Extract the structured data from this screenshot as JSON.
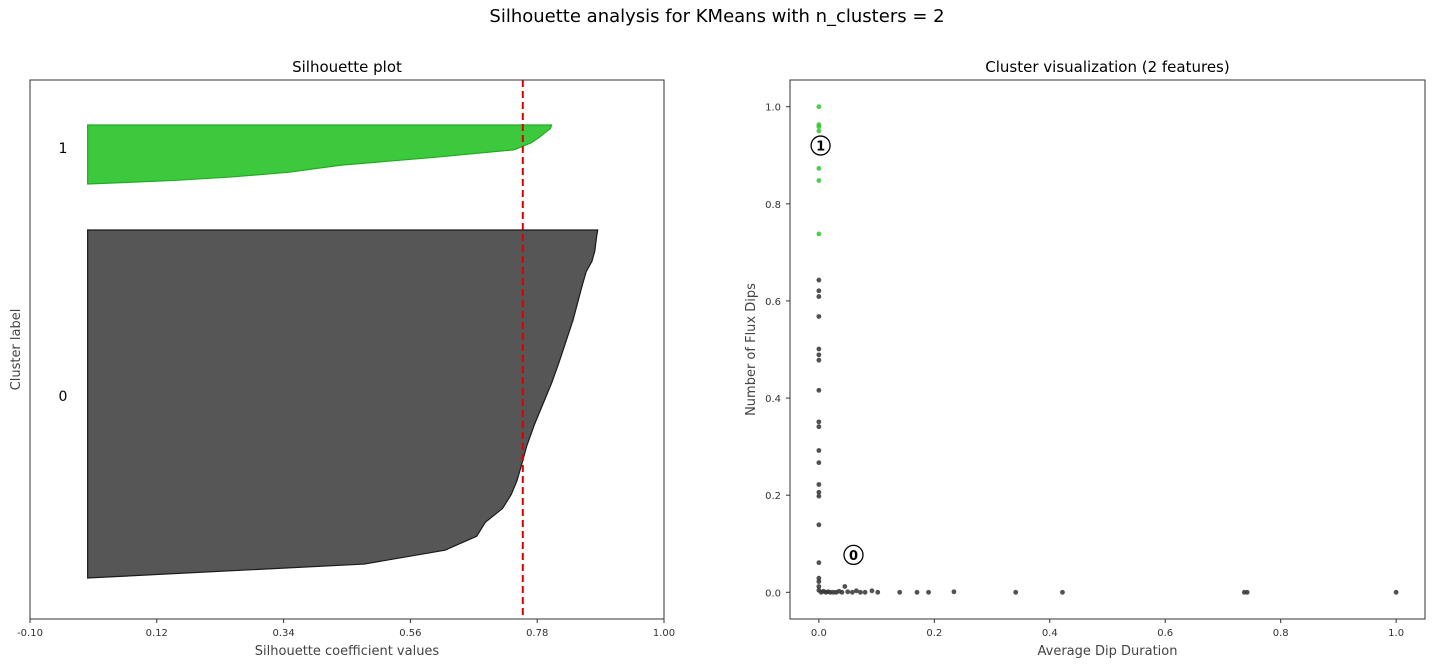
{
  "suptitle": "Silhouette analysis for KMeans with n_clusters = 2",
  "chart_data": [
    {
      "type": "area",
      "title": "Silhouette plot",
      "xlabel": "Silhouette coefficient values",
      "ylabel": "Cluster label",
      "xlim": [
        -0.1,
        1.0
      ],
      "xticks": [
        "-0.10",
        "0.12",
        "0.34",
        "0.56",
        "0.78",
        "1.00"
      ],
      "yticks": false,
      "average_silhouette": 0.755,
      "mean_line_color": "#dd0000",
      "clusters": [
        {
          "label": "0",
          "color": "#4d4d4d",
          "edge": "#1a1a1a",
          "profile": [
            [
              0.0,
              0.885
            ],
            [
              0.02,
              0.883
            ],
            [
              0.06,
              0.88
            ],
            [
              0.09,
              0.875
            ],
            [
              0.12,
              0.865
            ],
            [
              0.16,
              0.858
            ],
            [
              0.21,
              0.85
            ],
            [
              0.26,
              0.842
            ],
            [
              0.32,
              0.83
            ],
            [
              0.38,
              0.818
            ],
            [
              0.44,
              0.805
            ],
            [
              0.5,
              0.79
            ],
            [
              0.56,
              0.775
            ],
            [
              0.62,
              0.762
            ],
            [
              0.68,
              0.752
            ],
            [
              0.72,
              0.745
            ],
            [
              0.76,
              0.735
            ],
            [
              0.8,
              0.72
            ],
            [
              0.84,
              0.69
            ],
            [
              0.88,
              0.675
            ],
            [
              0.92,
              0.62
            ],
            [
              0.96,
              0.48
            ],
            [
              1.0,
              0.0
            ]
          ]
        },
        {
          "label": "1",
          "color": "#33c633",
          "edge": "#22aa22",
          "profile": [
            [
              0.0,
              0.805
            ],
            [
              0.06,
              0.803
            ],
            [
              0.12,
              0.795
            ],
            [
              0.2,
              0.785
            ],
            [
              0.3,
              0.77
            ],
            [
              0.42,
              0.74
            ],
            [
              0.55,
              0.6
            ],
            [
              0.68,
              0.44
            ],
            [
              0.8,
              0.35
            ],
            [
              0.88,
              0.25
            ],
            [
              0.94,
              0.15
            ],
            [
              1.0,
              0.0
            ]
          ]
        }
      ]
    },
    {
      "type": "scatter",
      "title": "Cluster visualization (2 features)",
      "xlabel": "Average Dip Duration",
      "ylabel": "Number of Flux Dips",
      "xlim": [
        -0.05,
        1.05
      ],
      "ylim": [
        -0.055,
        1.055
      ],
      "xticks": [
        "0.0",
        "0.2",
        "0.4",
        "0.6",
        "0.8",
        "1.0"
      ],
      "yticks": [
        "0.0",
        "0.2",
        "0.4",
        "0.6",
        "0.8",
        "1.0"
      ],
      "centers": [
        {
          "label": "0",
          "x": 0.06,
          "y": 0.077
        },
        {
          "label": "1",
          "x": 0.003,
          "y": 0.92
        }
      ],
      "series": [
        {
          "cluster": "0",
          "color": "#333333",
          "points": [
            [
              0.0,
              0.643
            ],
            [
              0.0,
              0.621
            ],
            [
              0.0,
              0.609
            ],
            [
              0.0,
              0.568
            ],
            [
              0.0,
              0.501
            ],
            [
              0.0,
              0.489
            ],
            [
              0.0,
              0.478
            ],
            [
              0.0,
              0.416
            ],
            [
              0.0,
              0.351
            ],
            [
              0.0,
              0.341
            ],
            [
              0.0,
              0.292
            ],
            [
              0.0,
              0.267
            ],
            [
              0.0,
              0.222
            ],
            [
              0.0,
              0.206
            ],
            [
              0.0,
              0.198
            ],
            [
              0.0,
              0.139
            ],
            [
              0.0,
              0.061
            ],
            [
              0.0,
              0.029
            ],
            [
              0.0,
              0.022
            ],
            [
              0.0,
              0.012
            ],
            [
              0.0,
              0.004
            ],
            [
              0.004,
              0.0
            ],
            [
              0.008,
              0.002
            ],
            [
              0.012,
              0.0
            ],
            [
              0.016,
              0.001
            ],
            [
              0.02,
              0.0
            ],
            [
              0.025,
              0.0
            ],
            [
              0.03,
              0.0
            ],
            [
              0.035,
              0.002
            ],
            [
              0.04,
              0.0
            ],
            [
              0.045,
              0.012
            ],
            [
              0.05,
              0.001
            ],
            [
              0.058,
              0.0
            ],
            [
              0.065,
              0.003
            ],
            [
              0.072,
              0.0
            ],
            [
              0.08,
              0.0
            ],
            [
              0.092,
              0.003
            ],
            [
              0.102,
              0.0
            ],
            [
              0.14,
              0.0
            ],
            [
              0.17,
              0.0
            ],
            [
              0.19,
              0.0
            ],
            [
              0.234,
              0.001
            ],
            [
              0.341,
              0.0
            ],
            [
              0.422,
              0.0
            ],
            [
              0.737,
              0.0
            ],
            [
              0.742,
              0.0
            ],
            [
              1.0,
              0.0
            ]
          ]
        },
        {
          "cluster": "1",
          "color": "#33c633",
          "points": [
            [
              0.0,
              1.0
            ],
            [
              0.0,
              0.963
            ],
            [
              0.0,
              0.959
            ],
            [
              0.0,
              0.95
            ],
            [
              0.0,
              0.873
            ],
            [
              0.0,
              0.848
            ],
            [
              0.0,
              0.738
            ]
          ]
        }
      ]
    }
  ]
}
